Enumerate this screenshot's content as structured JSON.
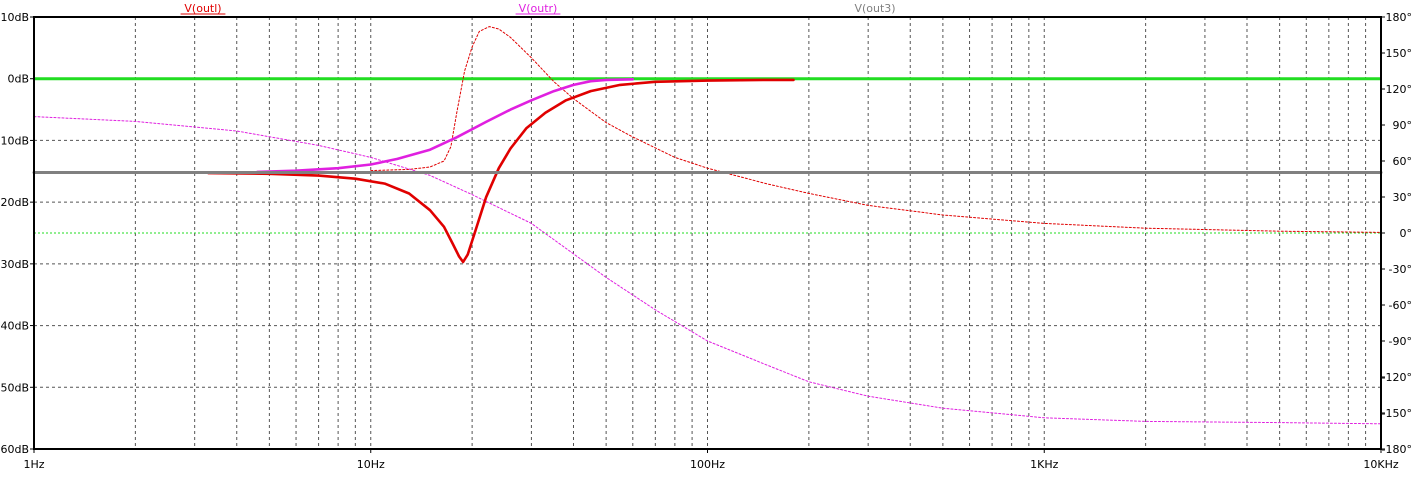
{
  "chart_data": {
    "type": "line",
    "title": "",
    "xlabel": "",
    "ylabel": "",
    "x_scale": "log",
    "xlim": [
      1,
      10000
    ],
    "ylim_left": [
      -60,
      10
    ],
    "ylim_right": [
      -180,
      180
    ],
    "grid": true,
    "legend_position": "top",
    "x_ticks": [
      "1Hz",
      "10Hz",
      "100Hz",
      "1KHz",
      "10KHz"
    ],
    "y_left_ticks": [
      "10dB",
      "0dB",
      "-10dB",
      "-20dB",
      "-30dB",
      "-40dB",
      "-50dB",
      "-60dB"
    ],
    "y_right_ticks": [
      "180°",
      "150°",
      "120°",
      "90°",
      "60°",
      "30°",
      "0°",
      "-30°",
      "-60°",
      "-90°",
      "-120°",
      "-150°",
      "-180°"
    ],
    "series": [
      {
        "name": "V(outl)",
        "color": "#e00000",
        "magnitude": {
          "x": [
            3.3,
            5,
            7,
            9,
            11,
            13,
            15,
            16.5,
            17.5,
            18.3,
            18.8,
            19.4,
            20.5,
            22,
            24,
            26,
            29,
            33,
            38,
            45,
            55,
            70,
            100,
            150,
            180
          ],
          "y": [
            -15.3,
            -15.4,
            -15.7,
            -16.2,
            -17,
            -18.6,
            -21.3,
            -24,
            -26.7,
            -28.8,
            -29.7,
            -28.5,
            -24.5,
            -19.2,
            -14.5,
            -11.3,
            -8,
            -5.5,
            -3.5,
            -2,
            -1,
            -0.5,
            -0.3,
            -0.2,
            -0.2
          ]
        },
        "phase": {
          "x": [
            10,
            13,
            15,
            16.5,
            17.3,
            18,
            19,
            20,
            21,
            22.5,
            24,
            26,
            30,
            35,
            40,
            50,
            60,
            80,
            100,
            150,
            200,
            300,
            500,
            1000,
            2000,
            5000,
            10000
          ],
          "y": [
            52,
            53,
            55,
            60,
            72,
            100,
            135,
            155,
            168,
            172,
            170,
            163,
            146,
            126,
            112,
            92,
            80,
            63,
            54,
            41,
            33,
            23,
            15,
            8,
            4,
            1.5,
            0.5
          ]
        }
      },
      {
        "name": "V(outr)",
        "color": "#e020e0",
        "magnitude": {
          "x": [
            4.6,
            6,
            8,
            10,
            12,
            15,
            18,
            22,
            26,
            30,
            35,
            40,
            45,
            50,
            60
          ],
          "y": [
            -15.1,
            -14.9,
            -14.5,
            -13.9,
            -13,
            -11.5,
            -9.5,
            -7,
            -5,
            -3.5,
            -2,
            -1,
            -0.4,
            -0.2,
            -0.1
          ]
        },
        "phase": {
          "x": [
            1,
            2,
            4,
            7,
            10,
            15,
            20,
            30,
            50,
            70,
            100,
            150,
            200,
            300,
            500,
            1000,
            2000,
            5000,
            10000
          ],
          "y": [
            97,
            93,
            85,
            73,
            63,
            48,
            32,
            8,
            -37,
            -64,
            -90,
            -110,
            -124,
            -136,
            -146,
            -154,
            -157,
            -158,
            -159
          ]
        }
      },
      {
        "name": "V(out3)",
        "color": "#808080",
        "magnitude": {
          "x": [
            1,
            10000
          ],
          "y": [
            -15.2,
            -15.2
          ]
        }
      }
    ],
    "flat_traces": [
      {
        "name": "",
        "color": "#22dd22",
        "axis": "left",
        "value": 0
      },
      {
        "name": "",
        "color": "#22dd22",
        "axis": "right",
        "value": 0
      }
    ]
  }
}
